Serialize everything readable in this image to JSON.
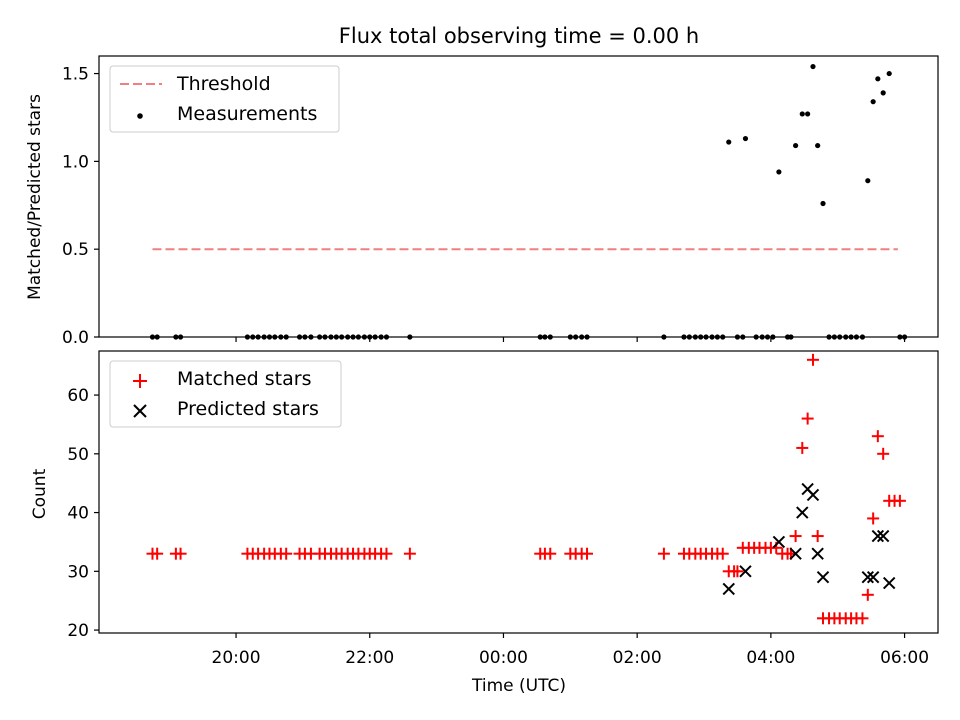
{
  "chart_data": [
    {
      "type": "scatter",
      "title": "Flux total observing time = 0.00 h",
      "xlabel": "",
      "ylabel": "Matched/Predicted stars",
      "ylim": [
        0,
        1.6
      ],
      "yticks": [
        0.0,
        0.5,
        1.0,
        1.5
      ],
      "ytick_labels": [
        "0.0",
        "0.5",
        "1.0",
        "1.5"
      ],
      "legend_placement": "top-left",
      "threshold": {
        "name": "Threshold",
        "value": 0.5,
        "x_start": 18.75,
        "x_end": 29.9,
        "color": "#f08080"
      },
      "series": [
        {
          "name": "Measurements",
          "color": "#000000",
          "points": [
            [
              18.75,
              0
            ],
            [
              18.82,
              0
            ],
            [
              19.1,
              0
            ],
            [
              19.17,
              0
            ],
            [
              20.17,
              0
            ],
            [
              20.25,
              0
            ],
            [
              20.33,
              0
            ],
            [
              20.42,
              0
            ],
            [
              20.5,
              0
            ],
            [
              20.58,
              0
            ],
            [
              20.67,
              0
            ],
            [
              20.75,
              0
            ],
            [
              20.95,
              0
            ],
            [
              21.03,
              0
            ],
            [
              21.12,
              0
            ],
            [
              21.25,
              0
            ],
            [
              21.33,
              0
            ],
            [
              21.42,
              0
            ],
            [
              21.5,
              0
            ],
            [
              21.58,
              0
            ],
            [
              21.67,
              0
            ],
            [
              21.75,
              0
            ],
            [
              21.83,
              0
            ],
            [
              21.92,
              0
            ],
            [
              22.0,
              0
            ],
            [
              22.08,
              0
            ],
            [
              22.17,
              0
            ],
            [
              22.25,
              0
            ],
            [
              22.6,
              0
            ],
            [
              24.55,
              0
            ],
            [
              24.62,
              0
            ],
            [
              24.7,
              0
            ],
            [
              25.0,
              0
            ],
            [
              25.08,
              0
            ],
            [
              25.17,
              0
            ],
            [
              25.25,
              0
            ],
            [
              26.4,
              0
            ],
            [
              26.7,
              0
            ],
            [
              26.78,
              0
            ],
            [
              26.87,
              0
            ],
            [
              26.95,
              0
            ],
            [
              27.03,
              0
            ],
            [
              27.12,
              0
            ],
            [
              27.2,
              0
            ],
            [
              27.28,
              0
            ],
            [
              27.5,
              0
            ],
            [
              27.58,
              0
            ],
            [
              27.78,
              0
            ],
            [
              27.87,
              0
            ],
            [
              27.95,
              0
            ],
            [
              28.03,
              0
            ],
            [
              28.25,
              0
            ],
            [
              28.3,
              0
            ],
            [
              28.87,
              0
            ],
            [
              28.95,
              0
            ],
            [
              29.03,
              0
            ],
            [
              29.12,
              0
            ],
            [
              29.2,
              0
            ],
            [
              29.28,
              0
            ],
            [
              29.37,
              0
            ],
            [
              29.93,
              0
            ],
            [
              30.0,
              0
            ],
            [
              27.37,
              1.11
            ],
            [
              27.62,
              1.13
            ],
            [
              28.12,
              0.94
            ],
            [
              28.37,
              1.09
            ],
            [
              28.47,
              1.27
            ],
            [
              28.55,
              1.27
            ],
            [
              28.63,
              1.54
            ],
            [
              28.7,
              1.09
            ],
            [
              28.78,
              0.76
            ],
            [
              29.45,
              0.89
            ],
            [
              29.53,
              1.34
            ],
            [
              29.6,
              1.47
            ],
            [
              29.68,
              1.39
            ],
            [
              29.77,
              1.5
            ]
          ]
        }
      ]
    },
    {
      "type": "scatter",
      "title": "",
      "xlabel": "Time (UTC)",
      "ylabel": "Count",
      "xlim": [
        17.95,
        30.5
      ],
      "ylim": [
        19.5,
        67.5
      ],
      "xticks": [
        20,
        22,
        24,
        26,
        28,
        30
      ],
      "xtick_labels": [
        "20:00",
        "22:00",
        "00:00",
        "02:00",
        "04:00",
        "06:00"
      ],
      "yticks": [
        20,
        30,
        40,
        50,
        60
      ],
      "ytick_labels": [
        "20",
        "30",
        "40",
        "50",
        "60"
      ],
      "legend_placement": "top-left",
      "series": [
        {
          "name": "Matched stars",
          "marker": "plus",
          "color": "#ff0000",
          "points": [
            [
              18.75,
              33
            ],
            [
              18.82,
              33
            ],
            [
              19.1,
              33
            ],
            [
              19.17,
              33
            ],
            [
              20.17,
              33
            ],
            [
              20.25,
              33
            ],
            [
              20.33,
              33
            ],
            [
              20.42,
              33
            ],
            [
              20.5,
              33
            ],
            [
              20.58,
              33
            ],
            [
              20.67,
              33
            ],
            [
              20.75,
              33
            ],
            [
              20.95,
              33
            ],
            [
              21.03,
              33
            ],
            [
              21.12,
              33
            ],
            [
              21.25,
              33
            ],
            [
              21.33,
              33
            ],
            [
              21.42,
              33
            ],
            [
              21.5,
              33
            ],
            [
              21.58,
              33
            ],
            [
              21.67,
              33
            ],
            [
              21.75,
              33
            ],
            [
              21.83,
              33
            ],
            [
              21.92,
              33
            ],
            [
              22.0,
              33
            ],
            [
              22.08,
              33
            ],
            [
              22.17,
              33
            ],
            [
              22.25,
              33
            ],
            [
              22.6,
              33
            ],
            [
              24.55,
              33
            ],
            [
              24.62,
              33
            ],
            [
              24.7,
              33
            ],
            [
              25.0,
              33
            ],
            [
              25.08,
              33
            ],
            [
              25.17,
              33
            ],
            [
              25.25,
              33
            ],
            [
              26.4,
              33
            ],
            [
              26.7,
              33
            ],
            [
              26.78,
              33
            ],
            [
              26.87,
              33
            ],
            [
              26.95,
              33
            ],
            [
              27.03,
              33
            ],
            [
              27.12,
              33
            ],
            [
              27.2,
              33
            ],
            [
              27.28,
              33
            ],
            [
              27.37,
              30
            ],
            [
              27.45,
              30
            ],
            [
              27.5,
              30
            ],
            [
              27.58,
              34
            ],
            [
              27.67,
              34
            ],
            [
              27.75,
              34
            ],
            [
              27.83,
              34
            ],
            [
              27.92,
              34
            ],
            [
              28.0,
              34
            ],
            [
              28.08,
              34
            ],
            [
              28.17,
              33
            ],
            [
              28.25,
              33
            ],
            [
              28.3,
              33
            ],
            [
              28.37,
              36
            ],
            [
              28.47,
              51
            ],
            [
              28.55,
              56
            ],
            [
              28.63,
              66
            ],
            [
              28.7,
              36
            ],
            [
              28.78,
              22
            ],
            [
              28.87,
              22
            ],
            [
              28.95,
              22
            ],
            [
              29.03,
              22
            ],
            [
              29.12,
              22
            ],
            [
              29.2,
              22
            ],
            [
              29.28,
              22
            ],
            [
              29.37,
              22
            ],
            [
              29.45,
              26
            ],
            [
              29.53,
              39
            ],
            [
              29.6,
              53
            ],
            [
              29.68,
              50
            ],
            [
              29.77,
              42
            ],
            [
              29.85,
              42
            ],
            [
              29.93,
              42
            ]
          ]
        },
        {
          "name": "Predicted stars",
          "marker": "x",
          "color": "#000000",
          "points": [
            [
              27.37,
              27
            ],
            [
              27.62,
              30
            ],
            [
              28.12,
              35
            ],
            [
              28.37,
              33
            ],
            [
              28.47,
              40
            ],
            [
              28.55,
              44
            ],
            [
              28.63,
              43
            ],
            [
              28.7,
              33
            ],
            [
              28.78,
              29
            ],
            [
              29.45,
              29
            ],
            [
              29.53,
              29
            ],
            [
              29.6,
              36
            ],
            [
              29.68,
              36
            ],
            [
              29.77,
              28
            ]
          ]
        }
      ]
    }
  ]
}
